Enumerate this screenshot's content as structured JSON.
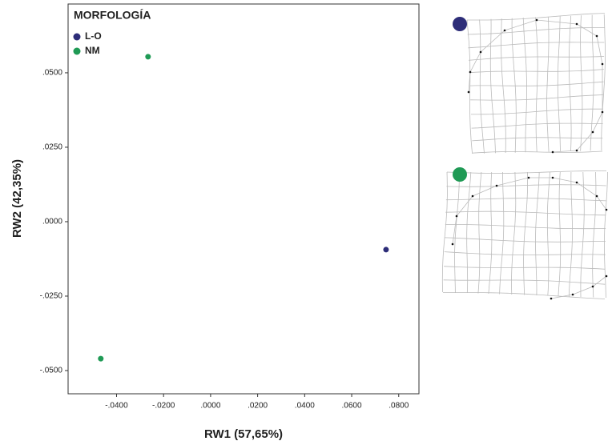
{
  "chart_data": {
    "type": "scatter",
    "x_label": "RW1 (57,65%)",
    "y_label": "RW2 (42,35%)",
    "legend_title": "MORFOLOGÍA",
    "legend": "upper left",
    "xlim": [
      -0.0606,
      0.0886
    ],
    "ylim": [
      -0.0578,
      0.0731
    ],
    "xticks": [
      {
        "value": -0.04,
        "label": "-.0400"
      },
      {
        "value": -0.02,
        "label": "-.0200"
      },
      {
        "value": 0,
        "label": ".0000"
      },
      {
        "value": 0.02,
        "label": ".0200"
      },
      {
        "value": 0.04,
        "label": ".0400"
      },
      {
        "value": 0.06,
        "label": ".0600"
      },
      {
        "value": 0.08,
        "label": ".0800"
      }
    ],
    "yticks": [
      {
        "value": 0.05,
        "label": ".0500"
      },
      {
        "value": 0.025,
        "label": ".0250"
      },
      {
        "value": 0,
        "label": ".0000"
      },
      {
        "value": -0.025,
        "label": "-.0250"
      },
      {
        "value": -0.05,
        "label": "-.0500"
      }
    ],
    "series": [
      {
        "name": "L-O",
        "color": "#2d2d78",
        "x": [
          0.0746
        ],
        "values": [
          -0.0094
        ]
      },
      {
        "name": "NM",
        "color": "#1f9a55",
        "x": [
          -0.0266,
          -0.0467
        ],
        "values": [
          0.0554,
          -0.046
        ]
      }
    ]
  }
}
